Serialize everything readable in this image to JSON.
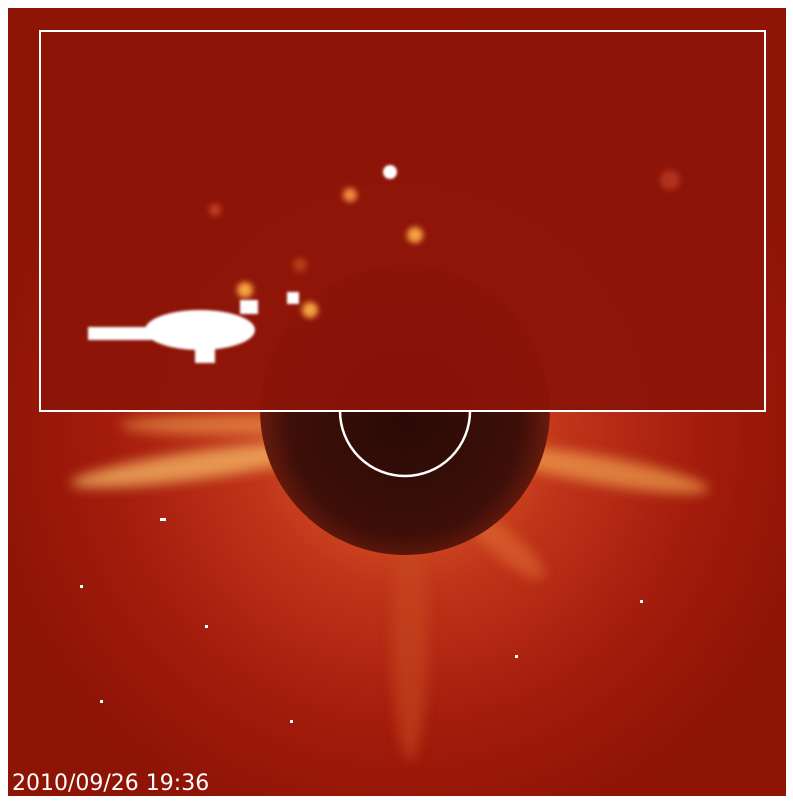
{
  "timestamp": "2010/09/26 19:36"
}
